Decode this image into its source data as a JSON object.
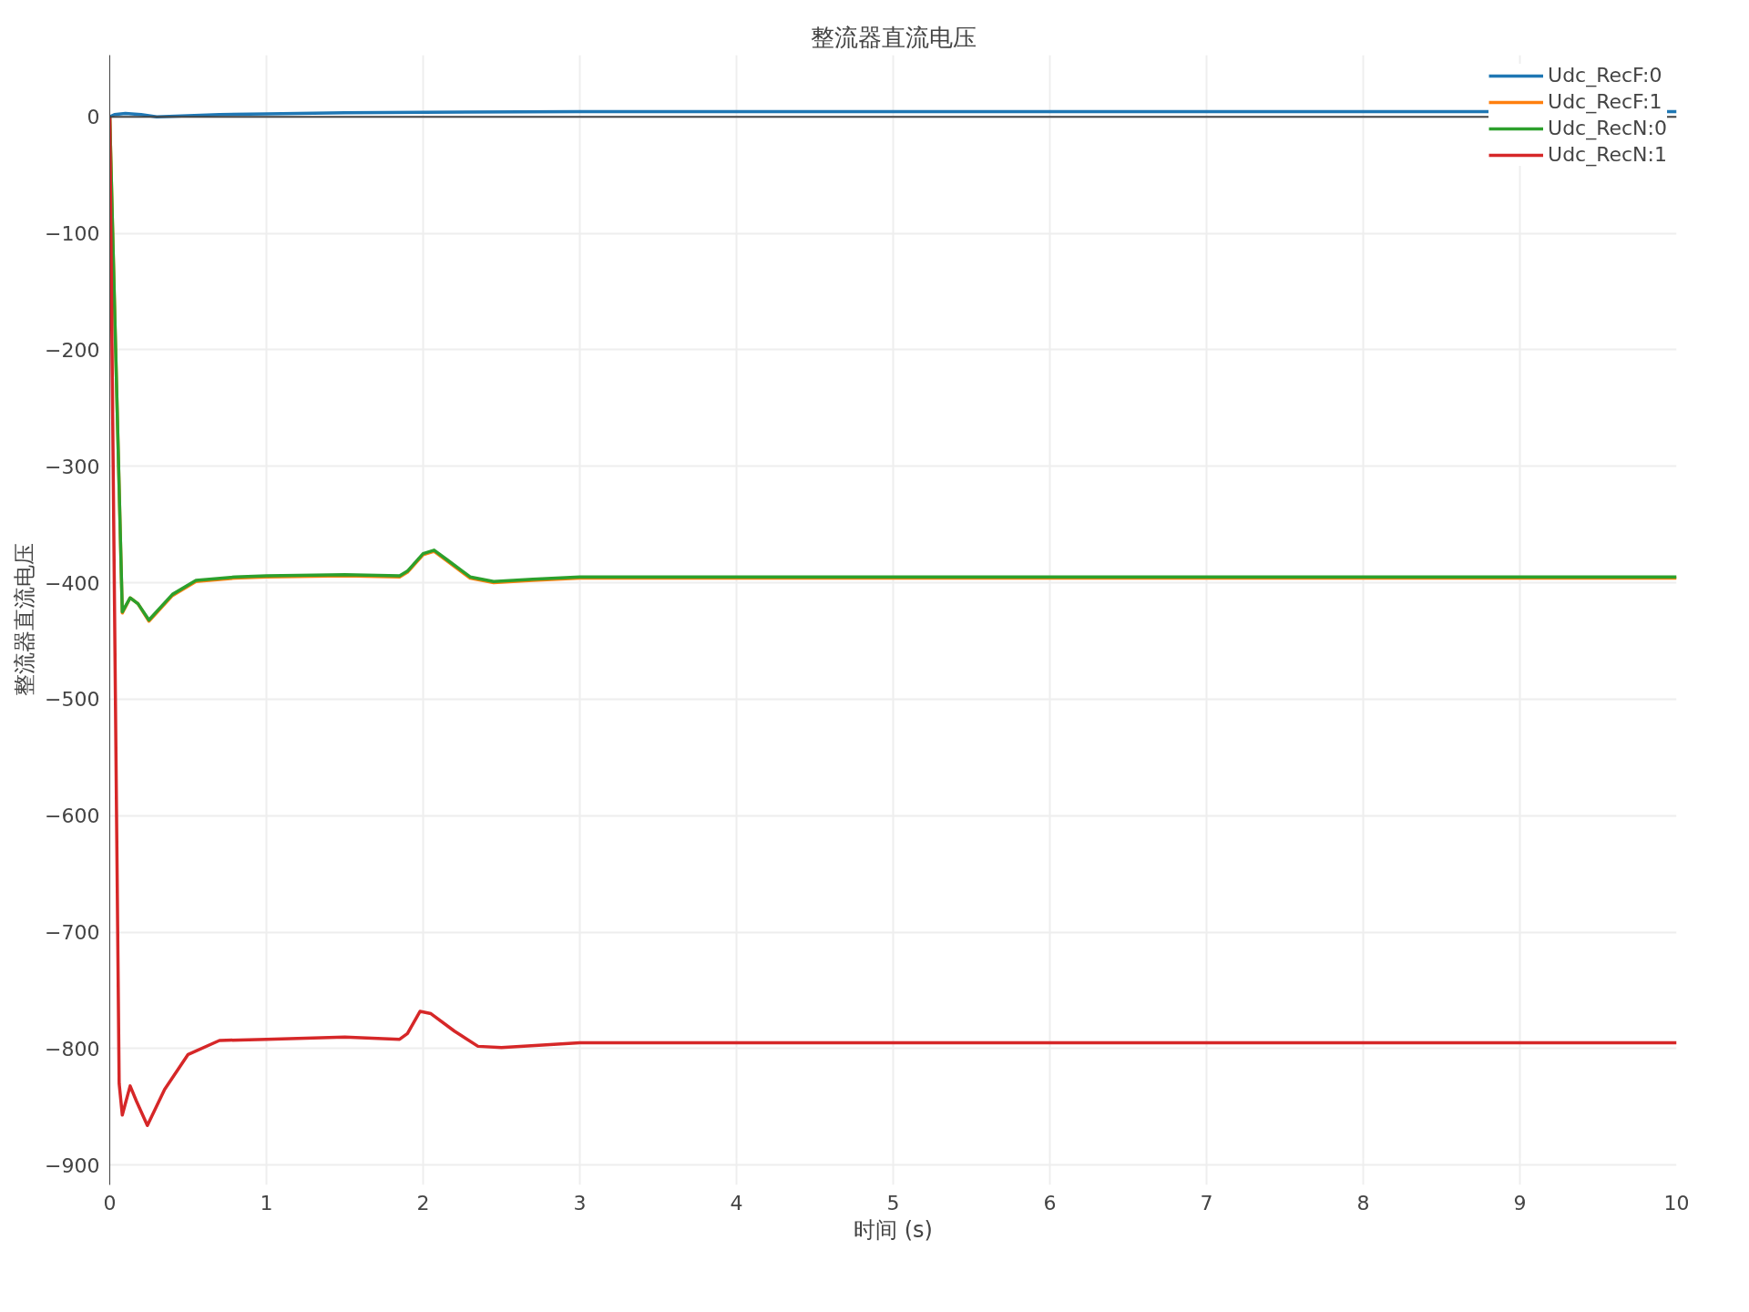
{
  "chart_data": {
    "type": "line",
    "title": "整流器直流电压",
    "xlabel": "时间 (s)",
    "ylabel": "整流器直流电压",
    "xlim": [
      0,
      10
    ],
    "ylim": [
      -917,
      53
    ],
    "xticks": [
      0,
      1,
      2,
      3,
      4,
      5,
      6,
      7,
      8,
      9,
      10
    ],
    "yticks": [
      {
        "value": 0,
        "label": "0"
      },
      {
        "value": -100,
        "label": "−100"
      },
      {
        "value": -200,
        "label": "−200"
      },
      {
        "value": -300,
        "label": "−300"
      },
      {
        "value": -400,
        "label": "−400"
      },
      {
        "value": -500,
        "label": "−500"
      },
      {
        "value": -600,
        "label": "−600"
      },
      {
        "value": -700,
        "label": "−700"
      },
      {
        "value": -800,
        "label": "−800"
      },
      {
        "value": -900,
        "label": "−900"
      }
    ],
    "grid": true,
    "legend": "top right",
    "line_style": "solid",
    "marker": "none",
    "ref_lines": [
      {
        "axis": "y",
        "value": 0,
        "color": "#444444"
      }
    ],
    "series": [
      {
        "name": "Udc_RecF:0",
        "color": "#1f77b4",
        "x": [
          0,
          0.03,
          0.1,
          0.2,
          0.3,
          0.5,
          0.7,
          1.0,
          1.5,
          2.0,
          3.0,
          5.0,
          8.0,
          10
        ],
        "values": [
          0,
          2,
          3,
          2,
          0,
          1,
          2,
          2.5,
          3.5,
          4,
          4.5,
          4.5,
          4.5,
          4.5
        ]
      },
      {
        "name": "Udc_RecF:1",
        "color": "#ff7f0e",
        "x": [
          0,
          0.08,
          0.13,
          0.18,
          0.25,
          0.4,
          0.55,
          0.8,
          1.0,
          1.5,
          1.85,
          1.9,
          2.0,
          2.07,
          2.15,
          2.3,
          2.45,
          2.7,
          3.0,
          4.0,
          6.0,
          8.0,
          10
        ],
        "values": [
          0,
          -426,
          -413,
          -418,
          -433,
          -411,
          -399,
          -396,
          -395,
          -394,
          -395,
          -391,
          -376,
          -373,
          -381,
          -396,
          -400,
          -398,
          -396,
          -396,
          -396,
          -396,
          -396
        ]
      },
      {
        "name": "Udc_RecN:0",
        "color": "#2ca02c",
        "x": [
          0,
          0.08,
          0.13,
          0.18,
          0.25,
          0.4,
          0.55,
          0.8,
          1.0,
          1.5,
          1.85,
          1.9,
          2.0,
          2.07,
          2.15,
          2.3,
          2.45,
          2.7,
          3.0,
          4.0,
          6.0,
          8.0,
          10
        ],
        "values": [
          0,
          -425,
          -413,
          -418,
          -432,
          -410,
          -398,
          -395,
          -394,
          -393,
          -394,
          -390,
          -375,
          -372,
          -380,
          -395,
          -399,
          -397,
          -395,
          -395,
          -395,
          -395,
          -395
        ]
      },
      {
        "name": "Udc_RecN:1",
        "color": "#d62728",
        "x": [
          0,
          0.06,
          0.08,
          0.13,
          0.17,
          0.24,
          0.35,
          0.5,
          0.7,
          1.0,
          1.5,
          1.85,
          1.9,
          1.98,
          2.05,
          2.2,
          2.35,
          2.5,
          3.0,
          4.0,
          6.0,
          8.0,
          10
        ],
        "values": [
          0,
          -830,
          -857,
          -832,
          -845,
          -866,
          -835,
          -805,
          -793,
          -792,
          -790,
          -792,
          -787,
          -768,
          -770,
          -785,
          -798,
          -799,
          -795,
          -795,
          -795,
          -795,
          -795
        ]
      }
    ]
  }
}
